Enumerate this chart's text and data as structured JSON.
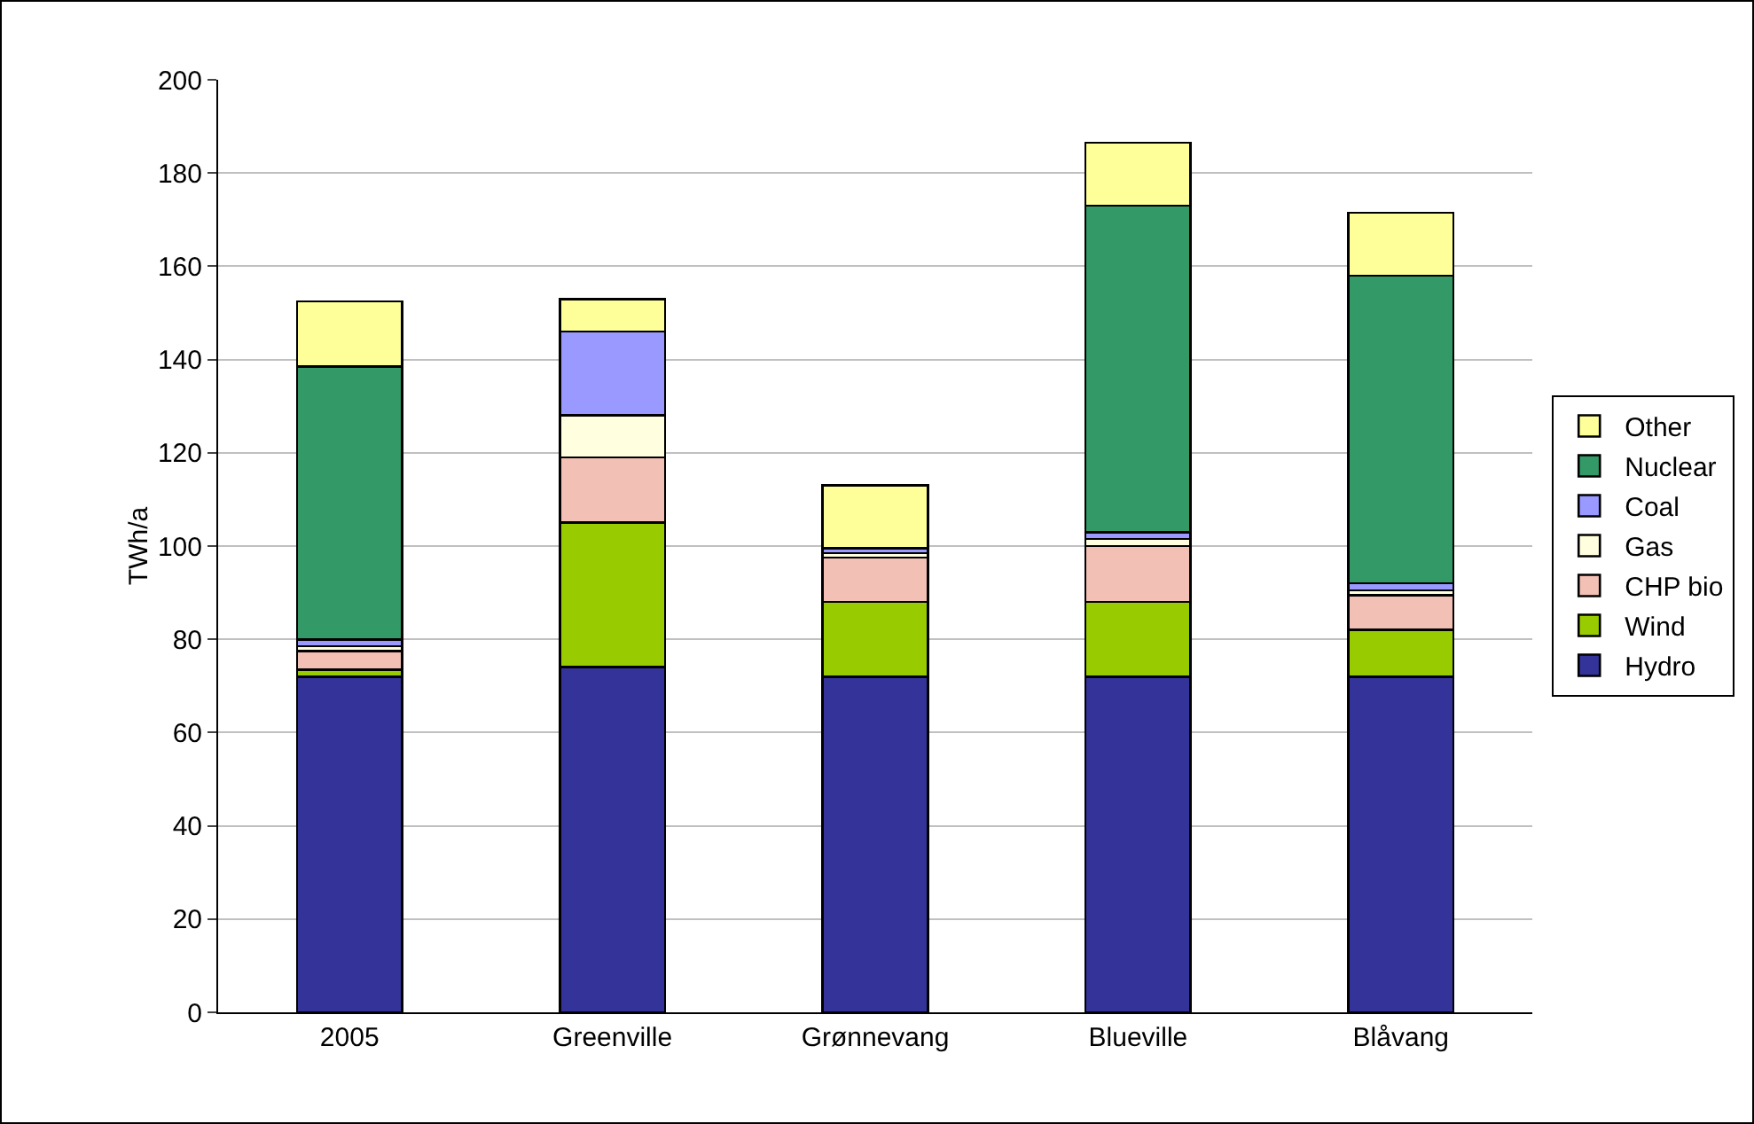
{
  "chart_data": {
    "type": "bar",
    "stacked": true,
    "ylabel": "TWh/a",
    "categories": [
      "2005",
      "Greenville",
      "Grønnevang",
      "Blueville",
      "Blåvang"
    ],
    "series": [
      {
        "name": "Hydro",
        "color": "#333399",
        "values": [
          72,
          74,
          72,
          72,
          72
        ]
      },
      {
        "name": "Wind",
        "color": "#99cc00",
        "values": [
          1.5,
          31,
          16,
          16,
          10
        ]
      },
      {
        "name": "CHP bio",
        "color": "#f2c0b4",
        "values": [
          4,
          14,
          9.5,
          12,
          7.5
        ]
      },
      {
        "name": "Gas",
        "color": "#ffffe0",
        "values": [
          1,
          9,
          1,
          1.5,
          1
        ]
      },
      {
        "name": "Coal",
        "color": "#9999ff",
        "values": [
          1.5,
          18,
          1,
          1.5,
          1.5
        ]
      },
      {
        "name": "Nuclear",
        "color": "#339966",
        "values": [
          58.5,
          0,
          0,
          70,
          66
        ]
      },
      {
        "name": "Other",
        "color": "#ffff99",
        "values": [
          14,
          7,
          13.5,
          13.5,
          13.5
        ]
      }
    ],
    "ylim": [
      0,
      200
    ],
    "yticks": [
      0,
      20,
      40,
      60,
      80,
      100,
      120,
      140,
      160,
      180,
      200
    ],
    "grid": "y",
    "legend": "right"
  }
}
